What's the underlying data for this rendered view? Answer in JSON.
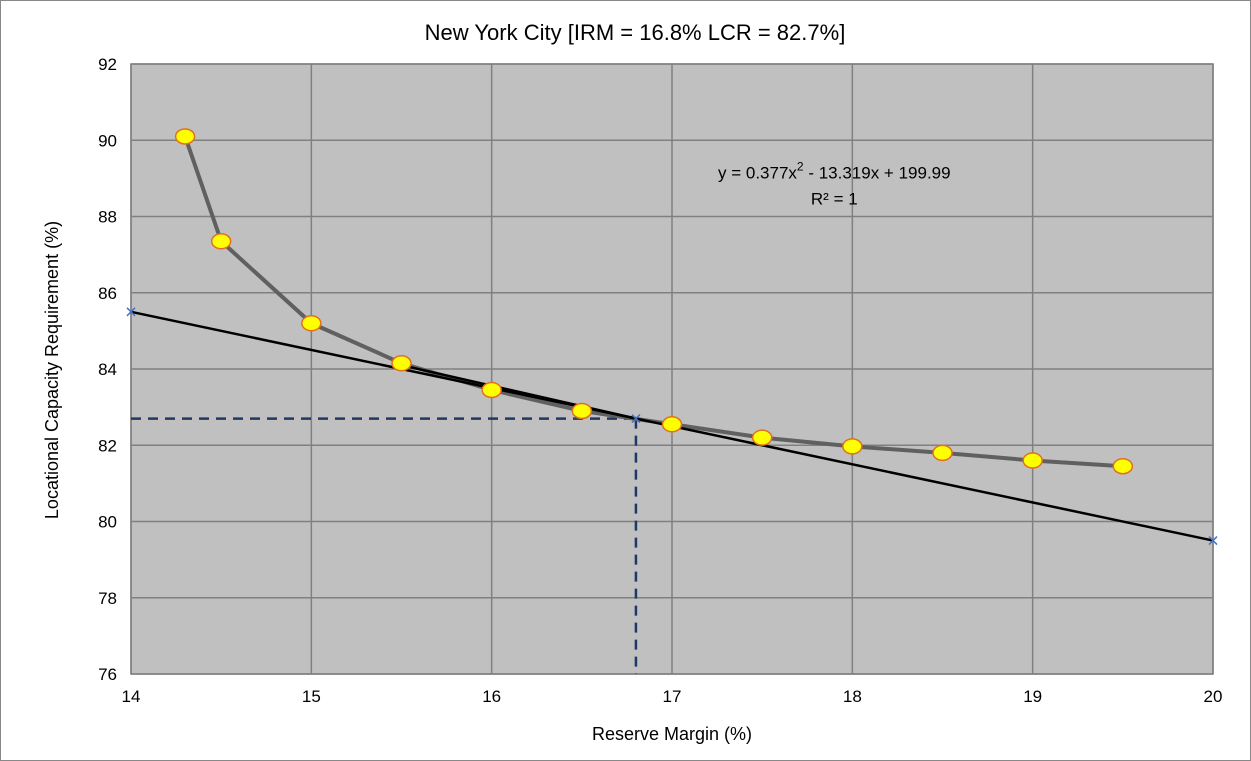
{
  "chart_data": {
    "type": "line",
    "title": "New York City [IRM = 16.8% LCR = 82.7%]",
    "xlabel": "Reserve Margin (%)",
    "ylabel": "Locational Capacity Requirement (%)",
    "xlim": [
      14,
      20
    ],
    "ylim": [
      76,
      92
    ],
    "x_ticks": [
      14,
      15,
      16,
      17,
      18,
      19,
      20
    ],
    "y_ticks": [
      76,
      78,
      80,
      82,
      84,
      86,
      88,
      90,
      92
    ],
    "grid": true,
    "legend": "none",
    "colors": {
      "plot_background": "#c0c0c0",
      "gridline": "#808080",
      "curve": "#606060",
      "marker_fill": "#ffff00",
      "marker_edge": "#e07020",
      "tangent": "#000000",
      "guide": "#1f3864",
      "tangent_end_marker": "#4472c4"
    },
    "series": [
      {
        "kind": "curve-with-markers",
        "x": [
          14.3,
          14.5,
          15.0,
          15.5,
          16.0,
          16.5,
          17.0,
          17.5,
          18.0,
          18.5,
          19.0,
          19.5
        ],
        "y": [
          90.1,
          87.35,
          85.2,
          84.15,
          83.45,
          82.9,
          82.55,
          82.2,
          81.97,
          81.8,
          81.6,
          81.45
        ]
      },
      {
        "kind": "tangent-line",
        "x": [
          14,
          20
        ],
        "y": [
          85.5,
          79.5
        ]
      },
      {
        "kind": "short-segment",
        "x": [
          15.5,
          16.8
        ],
        "y": [
          84.1,
          82.7
        ]
      }
    ],
    "guides": {
      "x": 16.8,
      "y": 82.7
    },
    "annotation": {
      "equation_prefix": "y = 0.377x",
      "equation_sup": "2",
      "equation_suffix": " - 13.319x + 199.99",
      "r_squared": "R² = 1",
      "anchor_x": 17.9,
      "anchor_y": 89.0
    }
  }
}
